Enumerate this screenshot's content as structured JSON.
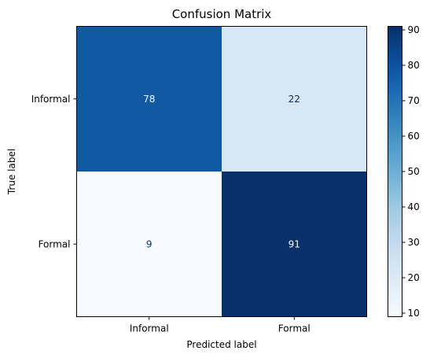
{
  "chart_data": {
    "type": "heatmap",
    "title": "Confusion Matrix",
    "xlabel": "Predicted label",
    "ylabel": "True label",
    "x_categories": [
      "Informal",
      "Formal"
    ],
    "y_categories": [
      "Informal",
      "Formal"
    ],
    "values": [
      [
        78,
        22
      ],
      [
        9,
        91
      ]
    ],
    "colormap": "Blues",
    "color_range": [
      9,
      91
    ],
    "colorbar_ticks": [
      "10",
      "20",
      "30",
      "40",
      "50",
      "60",
      "70",
      "80",
      "90"
    ],
    "colors": {
      "low": "#f7fbff",
      "high": "#08306b",
      "text_on_dark": "#f7fbff",
      "text_on_light": "#08306b"
    },
    "grid": false,
    "legend": "colorbar-right"
  }
}
